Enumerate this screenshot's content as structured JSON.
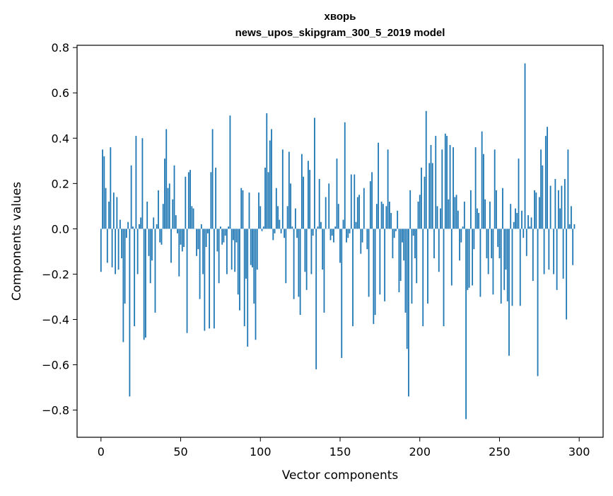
{
  "chart_data": {
    "type": "bar",
    "title_line1": "хворь",
    "title_line2": "news_upos_skipgram_300_5_2019 model",
    "xlabel": "Vector components",
    "ylabel": "Components values",
    "xlim": [
      -15,
      315
    ],
    "ylim": [
      -0.92,
      0.81
    ],
    "xticks": [
      0,
      50,
      100,
      150,
      200,
      250,
      300
    ],
    "xtick_labels": [
      "0",
      "50",
      "100",
      "150",
      "200",
      "250",
      "300"
    ],
    "yticks": [
      0.8,
      0.6,
      0.4,
      0.2,
      0.0,
      -0.2,
      -0.4,
      -0.6,
      -0.8
    ],
    "ytick_labels": [
      "0.8",
      "0.6",
      "0.4",
      "0.2",
      "0.0",
      "−0.2",
      "−0.4",
      "−0.6",
      "−0.8"
    ],
    "bar_color": "#1f77b4",
    "grid": false,
    "values": [
      -0.19,
      0.35,
      0.32,
      0.18,
      -0.15,
      0.12,
      0.36,
      -0.17,
      0.16,
      -0.2,
      0.14,
      -0.18,
      0.04,
      -0.13,
      -0.5,
      -0.33,
      -0.04,
      0.03,
      -0.74,
      0.28,
      0.01,
      -0.43,
      0.41,
      -0.2,
      0.02,
      0.05,
      0.4,
      -0.49,
      -0.48,
      0.12,
      -0.12,
      -0.24,
      -0.14,
      0.05,
      -0.37,
      0.02,
      0.17,
      -0.06,
      -0.07,
      0.11,
      0.31,
      0.44,
      0.18,
      0.2,
      -0.15,
      0.13,
      0.28,
      0.06,
      -0.02,
      -0.21,
      -0.07,
      -0.1,
      -0.08,
      0.23,
      -0.46,
      0.25,
      0.26,
      0.1,
      0.09,
      0.0,
      -0.12,
      -0.09,
      -0.31,
      0.02,
      -0.2,
      -0.45,
      -0.08,
      -0.02,
      -0.44,
      0.25,
      0.44,
      -0.44,
      0.27,
      -0.1,
      -0.24,
      0.01,
      -0.07,
      -0.06,
      -0.03,
      -0.2,
      0.01,
      0.5,
      -0.18,
      -0.05,
      -0.19,
      -0.06,
      -0.29,
      -0.36,
      0.18,
      0.17,
      -0.43,
      -0.22,
      -0.52,
      0.16,
      -0.16,
      -0.17,
      -0.33,
      -0.49,
      -0.18,
      0.16,
      0.1,
      -0.01,
      0.01,
      0.27,
      0.51,
      0.25,
      0.39,
      0.44,
      -0.05,
      -0.02,
      0.18,
      0.1,
      0.04,
      -0.02,
      0.35,
      -0.04,
      -0.24,
      0.1,
      0.34,
      0.2,
      0.01,
      -0.31,
      0.09,
      -0.04,
      -0.3,
      -0.38,
      0.33,
      0.23,
      -0.19,
      -0.27,
      0.3,
      0.26,
      -0.2,
      -0.03,
      0.49,
      -0.62,
      0.01,
      0.22,
      0.03,
      -0.18,
      -0.37,
      0.14,
      0.0,
      0.2,
      -0.05,
      -0.03,
      -0.06,
      0.01,
      0.31,
      0.11,
      -0.15,
      -0.57,
      0.04,
      0.47,
      -0.06,
      -0.04,
      -0.02,
      0.24,
      -0.43,
      0.24,
      0.03,
      0.14,
      0.15,
      -0.11,
      -0.06,
      0.18,
      0.0,
      -0.09,
      -0.3,
      0.21,
      0.25,
      -0.42,
      -0.38,
      0.11,
      0.38,
      -0.29,
      0.12,
      0.11,
      -0.32,
      0.1,
      0.35,
      0.12,
      0.07,
      -0.13,
      -0.04,
      -0.01,
      0.08,
      -0.28,
      -0.23,
      -0.06,
      -0.14,
      -0.37,
      -0.53,
      -0.74,
      0.17,
      -0.33,
      -0.03,
      -0.13,
      -0.24,
      0.12,
      0.15,
      0.27,
      -0.43,
      0.23,
      0.52,
      -0.33,
      0.29,
      0.37,
      0.29,
      -0.13,
      0.41,
      0.1,
      -0.19,
      0.09,
      0.35,
      -0.43,
      0.42,
      0.41,
      0.13,
      0.37,
      -0.25,
      0.36,
      0.14,
      0.15,
      0.08,
      -0.14,
      -0.06,
      0.01,
      0.12,
      -0.84,
      -0.27,
      -0.26,
      0.17,
      -0.25,
      -0.09,
      0.36,
      0.09,
      0.07,
      -0.3,
      0.43,
      0.33,
      0.13,
      -0.13,
      -0.2,
      0.12,
      -0.13,
      -0.29,
      0.35,
      0.17,
      -0.08,
      -0.13,
      -0.33,
      0.18,
      -0.27,
      -0.18,
      -0.32,
      -0.56,
      0.11,
      -0.34,
      0.03,
      0.09,
      0.07,
      0.31,
      -0.34,
      0.08,
      -0.04,
      0.73,
      -0.12,
      0.06,
      0.01,
      0.05,
      -0.23,
      0.17,
      0.16,
      -0.65,
      0.14,
      0.35,
      0.28,
      -0.2,
      0.41,
      0.45,
      -0.18,
      0.19,
      0.0,
      -0.2,
      0.22,
      -0.27,
      0.17,
      0.09,
      0.19,
      -0.22,
      0.22,
      -0.4,
      0.35,
      0.02,
      0.1,
      -0.16,
      0.02
    ]
  }
}
